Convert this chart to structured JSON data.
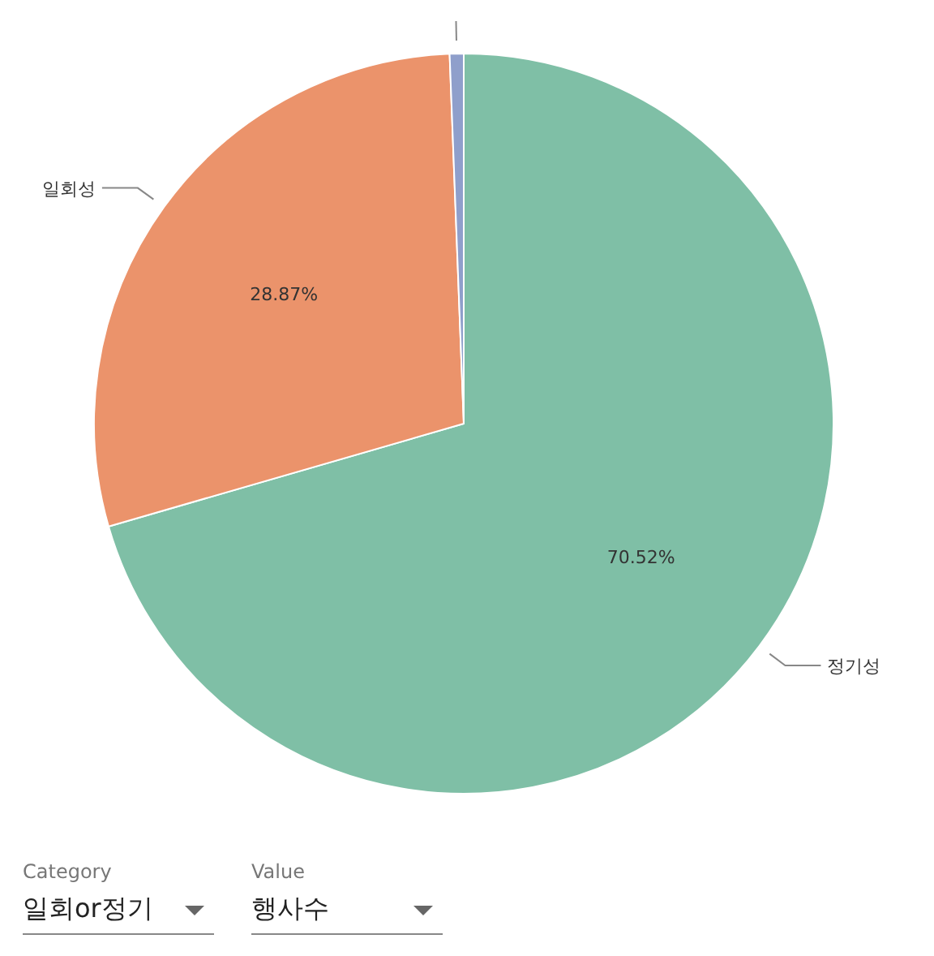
{
  "chart_data": {
    "type": "pie",
    "categories": [
      "정기성",
      "일회성",
      null
    ],
    "values": [
      70.52,
      28.87,
      0.61
    ],
    "colors": [
      "#7fbfa6",
      "#eb936b",
      "#8f9fcb"
    ],
    "value_labels": [
      "70.52%",
      "28.87%",
      null
    ],
    "annotations": [
      "Category",
      "일회or정기",
      "Value",
      "행사수"
    ]
  }
}
